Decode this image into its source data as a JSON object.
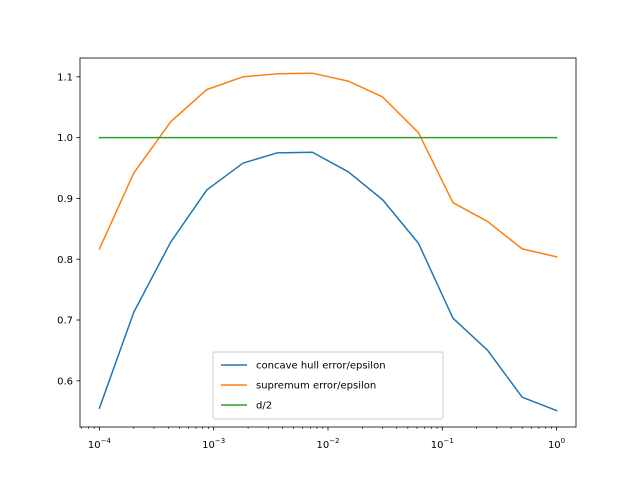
{
  "chart_data": {
    "type": "line",
    "title": "",
    "xlabel": "",
    "ylabel": "",
    "xscale": "log",
    "xlim": [
      6.76e-05,
      1.48
    ],
    "ylim": [
      0.524,
      1.131
    ],
    "x_ticks": [
      {
        "value": 0.0001,
        "base": "10",
        "exp": "−4"
      },
      {
        "value": 0.001,
        "base": "10",
        "exp": "−3"
      },
      {
        "value": 0.01,
        "base": "10",
        "exp": "−2"
      },
      {
        "value": 0.1,
        "base": "10",
        "exp": "−1"
      },
      {
        "value": 1,
        "base": "10",
        "exp": "0"
      }
    ],
    "y_ticks": [
      {
        "value": 0.6,
        "label": "0.6"
      },
      {
        "value": 0.7,
        "label": "0.7"
      },
      {
        "value": 0.8,
        "label": "0.8"
      },
      {
        "value": 0.9,
        "label": "0.9"
      },
      {
        "value": 1.0,
        "label": "1.0"
      },
      {
        "value": 1.1,
        "label": "1.1"
      }
    ],
    "grid": false,
    "legend_position": "lower-center",
    "x": [
      0.0001,
      0.0002,
      0.00042,
      0.00087,
      0.0018,
      0.0036,
      0.0073,
      0.015,
      0.03,
      0.062,
      0.124,
      0.25,
      0.5,
      1.0
    ],
    "series": [
      {
        "name": "concave hull error/epsilon",
        "color": "#1f77b4",
        "values": [
          0.555,
          0.713,
          0.828,
          0.914,
          0.958,
          0.975,
          0.976,
          0.944,
          0.898,
          0.826,
          0.703,
          0.65,
          0.573,
          0.551
        ]
      },
      {
        "name": "supremum error/epsilon",
        "color": "#ff7f0e",
        "values": [
          0.817,
          0.942,
          1.026,
          1.079,
          1.1,
          1.105,
          1.106,
          1.093,
          1.067,
          1.008,
          0.893,
          0.862,
          0.817,
          0.804
        ]
      },
      {
        "name": "d/2",
        "color": "#2ca02c",
        "values": [
          1.0,
          1.0,
          1.0,
          1.0,
          1.0,
          1.0,
          1.0,
          1.0,
          1.0,
          1.0,
          1.0,
          1.0,
          1.0,
          1.0
        ]
      }
    ]
  }
}
